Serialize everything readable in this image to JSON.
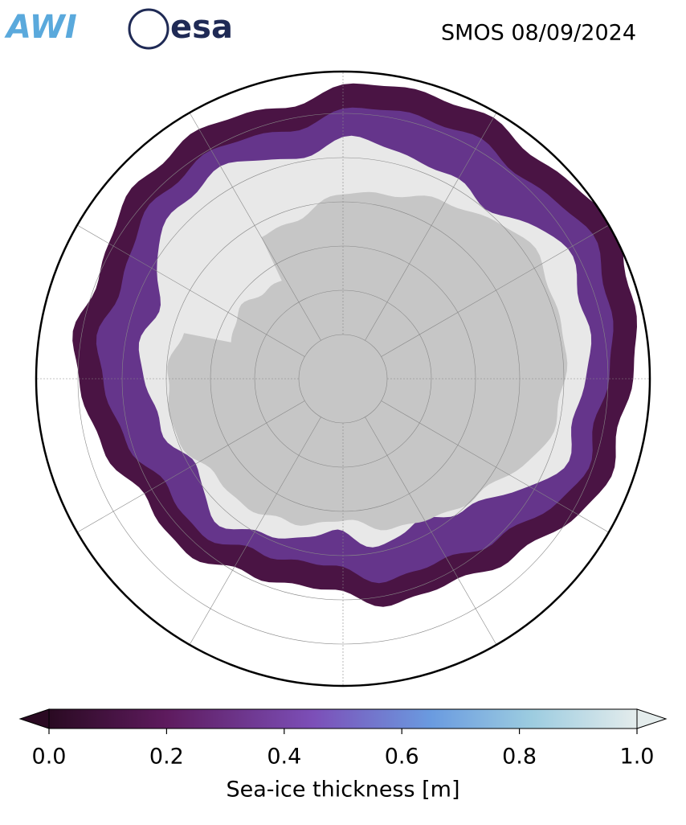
{
  "header": {
    "logos": [
      "AWI",
      "esa"
    ],
    "title": "SMOS 08/09/2024"
  },
  "colorbar": {
    "label": "Sea-ice thickness [m]",
    "lim": [
      0,
      1
    ],
    "ticks": [
      {
        "value": 0,
        "label": "0.0"
      },
      {
        "value": 0.2,
        "label": "0.2"
      },
      {
        "value": 0.4,
        "label": "0.4"
      },
      {
        "value": 0.6,
        "label": "0.6"
      },
      {
        "value": 0.8,
        "label": "0.8"
      },
      {
        "value": 1,
        "label": "1.0"
      }
    ]
  }
}
